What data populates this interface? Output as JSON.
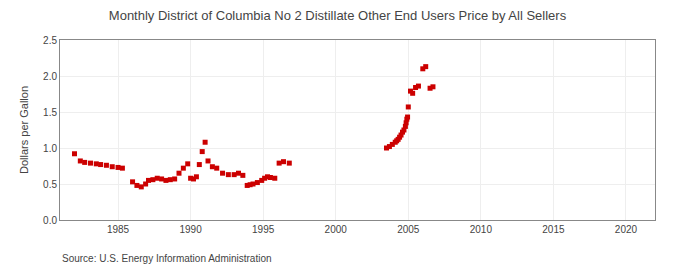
{
  "chart_data": {
    "type": "scatter",
    "title": "Monthly District of Columbia No 2 Distillate Other End Users Price by All Sellers",
    "ylabel": "Dollars per Gallon",
    "annotations": [
      "Source: U.S. Energy Information Administration"
    ],
    "color": "#cc0000",
    "marker": "square",
    "grid": true,
    "xlim": [
      1981,
      2022
    ],
    "ylim": [
      0.0,
      2.5
    ],
    "xticks": [
      1985,
      1990,
      1995,
      2000,
      2005,
      2010,
      2015,
      2020
    ],
    "yticks": [
      {
        "value": 0.0,
        "label": "0.0"
      },
      0.5,
      {
        "value": 1.0,
        "label": "1.0"
      },
      1.5,
      {
        "value": 2.0,
        "label": "2.0"
      },
      2.5
    ],
    "x": [
      1982.0,
      1982.4,
      1982.7,
      1983.1,
      1983.5,
      1983.8,
      1984.2,
      1984.6,
      1985.0,
      1985.3,
      1986.0,
      1986.3,
      1986.6,
      1986.9,
      1987.1,
      1987.4,
      1987.7,
      1988.0,
      1988.3,
      1988.6,
      1988.9,
      1989.2,
      1989.5,
      1989.8,
      1990.0,
      1990.2,
      1990.4,
      1990.6,
      1990.8,
      1991.0,
      1991.2,
      1991.5,
      1991.8,
      1992.2,
      1992.6,
      1993.0,
      1993.3,
      1993.6,
      1993.9,
      1994.1,
      1994.3,
      1994.6,
      1994.9,
      1995.1,
      1995.3,
      1995.5,
      1995.8,
      1996.1,
      1996.4,
      1996.8,
      2003.5,
      2003.7,
      2003.9,
      2004.1,
      2004.2,
      2004.3,
      2004.4,
      2004.5,
      2004.6,
      2004.7,
      2004.8,
      2004.85,
      2004.9,
      2004.95,
      2005.0,
      2005.15,
      2005.3,
      2005.5,
      2005.7,
      2006.0,
      2006.2,
      2006.5,
      2006.7
    ],
    "values": [
      0.92,
      0.82,
      0.8,
      0.79,
      0.78,
      0.77,
      0.76,
      0.74,
      0.73,
      0.72,
      0.53,
      0.48,
      0.46,
      0.5,
      0.55,
      0.56,
      0.58,
      0.57,
      0.55,
      0.56,
      0.57,
      0.65,
      0.72,
      0.78,
      0.58,
      0.57,
      0.6,
      0.77,
      0.95,
      1.08,
      0.82,
      0.74,
      0.72,
      0.65,
      0.63,
      0.63,
      0.65,
      0.62,
      0.48,
      0.49,
      0.5,
      0.52,
      0.55,
      0.58,
      0.6,
      0.59,
      0.58,
      0.79,
      0.81,
      0.79,
      1.0,
      1.02,
      1.05,
      1.08,
      1.1,
      1.12,
      1.15,
      1.18,
      1.22,
      1.25,
      1.3,
      1.35,
      1.4,
      1.43,
      1.57,
      1.79,
      1.76,
      1.84,
      1.86,
      2.1,
      2.13,
      1.83,
      1.85
    ]
  }
}
